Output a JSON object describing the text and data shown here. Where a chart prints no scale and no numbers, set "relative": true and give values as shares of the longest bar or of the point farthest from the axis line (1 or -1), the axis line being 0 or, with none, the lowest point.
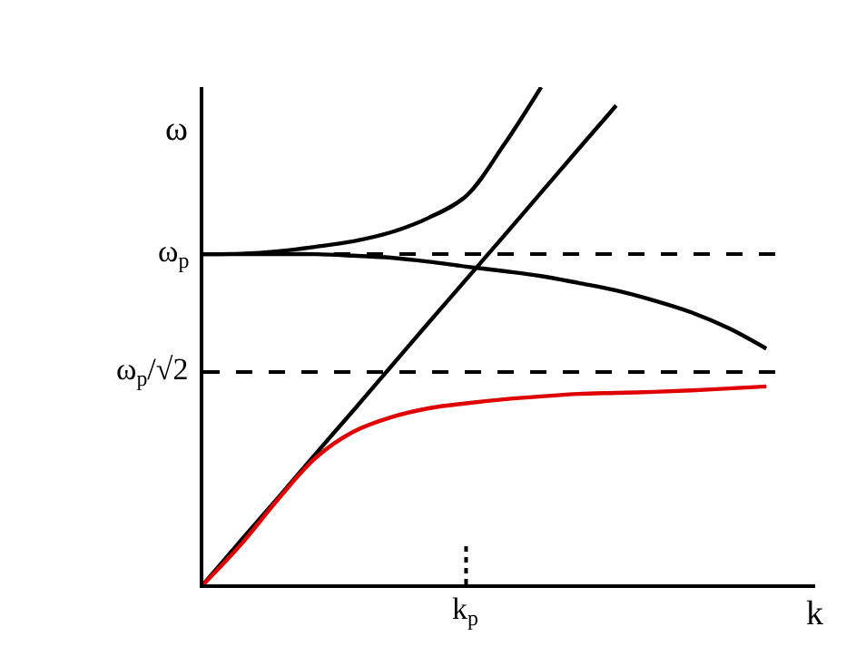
{
  "chart_data": {
    "type": "line",
    "relative": true,
    "xlabel": "k",
    "ylabel": "ω",
    "categories": [
      null,
      null,
      null,
      null,
      null,
      null,
      null,
      null,
      null,
      null,
      null,
      null,
      null,
      null,
      null,
      null
    ],
    "annotations": [
      "k$_{p}$"
    ],
    "series": [
      {
        "color": "#000000",
        "values": [
          0,
          0.088,
          0.175,
          0.263,
          0.35,
          0.438,
          0.526,
          0.613,
          0.7,
          0.788,
          0.876,
          0.963,
          null,
          null,
          null,
          null
        ]
      },
      {
        "color": "#000000",
        "values": [
          0.664,
          0.665,
          0.67,
          0.679,
          0.69,
          0.708,
          0.737,
          0.781,
          0.883,
          1.0,
          null,
          null,
          null,
          null,
          null,
          null
        ]
      },
      {
        "color": "#000000",
        "values": [
          0.664,
          0.664,
          0.664,
          0.664,
          0.661,
          0.657,
          0.649,
          0.639,
          0.63,
          0.62,
          0.606,
          0.591,
          0.571,
          0.547,
          0.515,
          0.474
        ]
      },
      {
        "color": "#e00000",
        "values": [
          0,
          0.08,
          0.172,
          0.255,
          0.307,
          0.336,
          0.354,
          0.364,
          0.372,
          0.378,
          0.383,
          0.385,
          0.387,
          0.39,
          0.394,
          0.398
        ]
      }
    ],
    "ref_lines": [
      {
        "axis": "y",
        "value": 0.664,
        "label": "ω$_{p}$",
        "line_style": "dashed",
        "color": "#000000"
      },
      {
        "axis": "y",
        "value": 0.427,
        "label": "ω$_{p}$/√2",
        "line_style": "dashed",
        "color": "#000000"
      }
    ],
    "legend": false
  }
}
